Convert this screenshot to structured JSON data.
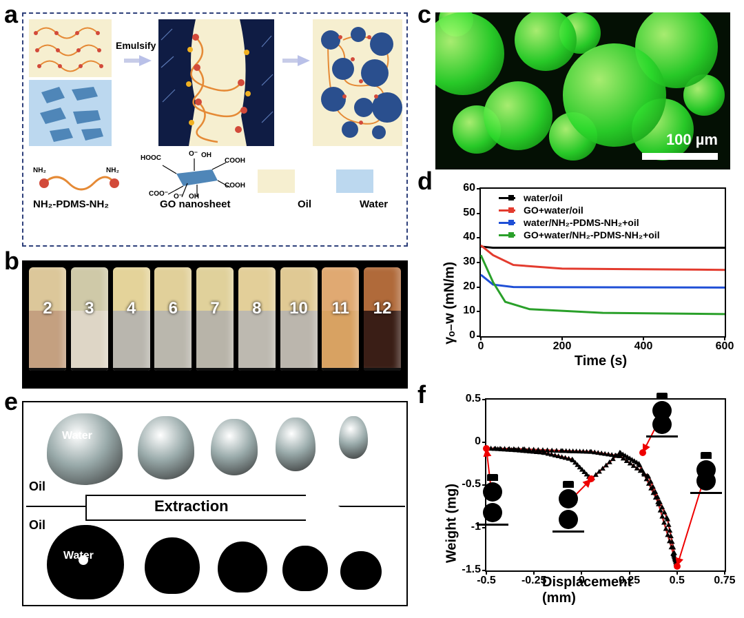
{
  "panels": {
    "a": "a",
    "b": "b",
    "c": "c",
    "d": "d",
    "e": "e",
    "f": "f"
  },
  "a": {
    "emulsify_label": "Emulsify",
    "legend": {
      "pdms": "NH₂-PDMS-NH₂",
      "go": "GO nanosheet",
      "oil": "Oil",
      "water": "Water"
    },
    "colors": {
      "oil": "#f6efd0",
      "water": "#bcd8ef",
      "go": "#7aaed4",
      "dark": "#1b2a5c",
      "chain": "#e58a36",
      "bead": "#d24a3a",
      "nh2": "#d24a3a"
    },
    "small_labels": {
      "nh2l": "NH₂",
      "nh2r": "NH₂",
      "cooh": "COOH",
      "coo": "COO⁻",
      "oh": "OH",
      "o": "O⁻",
      "hooc": "HOOC"
    }
  },
  "b": {
    "vial_numbers": [
      "2",
      "3",
      "4",
      "6",
      "7",
      "8",
      "10",
      "11",
      "12"
    ],
    "upper_colors": [
      "#dcc79a",
      "#cfc9a8",
      "#e4d39a",
      "#e1d09a",
      "#e0d19b",
      "#e3cf99",
      "#e0c994",
      "#e0a972",
      "#b06a3a"
    ],
    "lower_colors": [
      "#c4a080",
      "#ded6c6",
      "#b9b6ae",
      "#bab7ad",
      "#b8b4a9",
      "#bdb9b0",
      "#bbb6ad",
      "#d8a262",
      "#3a1e16"
    ]
  },
  "c": {
    "scale_text": "100 µm"
  },
  "d": {
    "chart_type": "line",
    "xlabel": "Time (s)",
    "ylabel": "γₒ₋w (mN/m)",
    "xlim": [
      0,
      600
    ],
    "ylim": [
      0,
      60
    ],
    "xticks": [
      0,
      200,
      400,
      600
    ],
    "yticks": [
      0,
      10,
      20,
      30,
      40,
      50,
      60
    ],
    "legend": [
      {
        "label": "water/oil",
        "color": "#000000"
      },
      {
        "label": "GO+water/oil",
        "color": "#e33b2e"
      },
      {
        "label": "water/NH₂-PDMS-NH₂+oil",
        "color": "#1f4fd6"
      },
      {
        "label": "GO+water/NH₂-PDMS-NH₂+oil",
        "color": "#2aa02a"
      }
    ],
    "series": {
      "black": [
        [
          0,
          36.5
        ],
        [
          30,
          36
        ],
        [
          600,
          36
        ]
      ],
      "red": [
        [
          0,
          37
        ],
        [
          30,
          33
        ],
        [
          80,
          29
        ],
        [
          200,
          27.5
        ],
        [
          600,
          27
        ]
      ],
      "blue": [
        [
          0,
          25
        ],
        [
          30,
          21
        ],
        [
          80,
          20
        ],
        [
          600,
          19.8
        ]
      ],
      "green": [
        [
          0,
          33
        ],
        [
          30,
          22
        ],
        [
          60,
          14
        ],
        [
          120,
          11
        ],
        [
          300,
          9.5
        ],
        [
          600,
          9
        ]
      ]
    },
    "line_width": 3
  },
  "e": {
    "extraction_label": "Extraction",
    "oil_label": "Oil",
    "water_label": "Water"
  },
  "f": {
    "chart_type": "scatter-line",
    "xlabel": "Displacement (mm)",
    "ylabel": "Weight (mg)",
    "xlim": [
      -0.5,
      0.75
    ],
    "ylim": [
      -1.5,
      0.5
    ],
    "xticks": [
      -0.5,
      -0.25,
      0.0,
      0.25,
      0.5,
      0.75
    ],
    "yticks": [
      -1.5,
      -1.0,
      -0.5,
      0.0,
      0.5
    ],
    "marker_color": "#000000",
    "line_color": "#d62728",
    "marker": "triangle",
    "loop": [
      [
        -0.5,
        -0.07
      ],
      [
        -0.3,
        -0.08
      ],
      [
        -0.1,
        -0.1
      ],
      [
        0.05,
        -0.11
      ],
      [
        0.2,
        -0.16
      ],
      [
        0.35,
        -0.4
      ],
      [
        0.45,
        -0.9
      ],
      [
        0.5,
        -1.45
      ],
      [
        0.48,
        -1.3
      ],
      [
        0.4,
        -0.7
      ],
      [
        0.3,
        -0.25
      ],
      [
        0.2,
        -0.12
      ],
      [
        0.05,
        -0.43
      ],
      [
        -0.05,
        -0.2
      ],
      [
        -0.2,
        -0.12
      ],
      [
        -0.35,
        -0.09
      ],
      [
        -0.5,
        -0.07
      ]
    ],
    "dots": [
      [
        -0.5,
        -0.07
      ],
      [
        0.05,
        -0.43
      ],
      [
        0.32,
        -0.12
      ],
      [
        0.5,
        -1.45
      ]
    ]
  }
}
